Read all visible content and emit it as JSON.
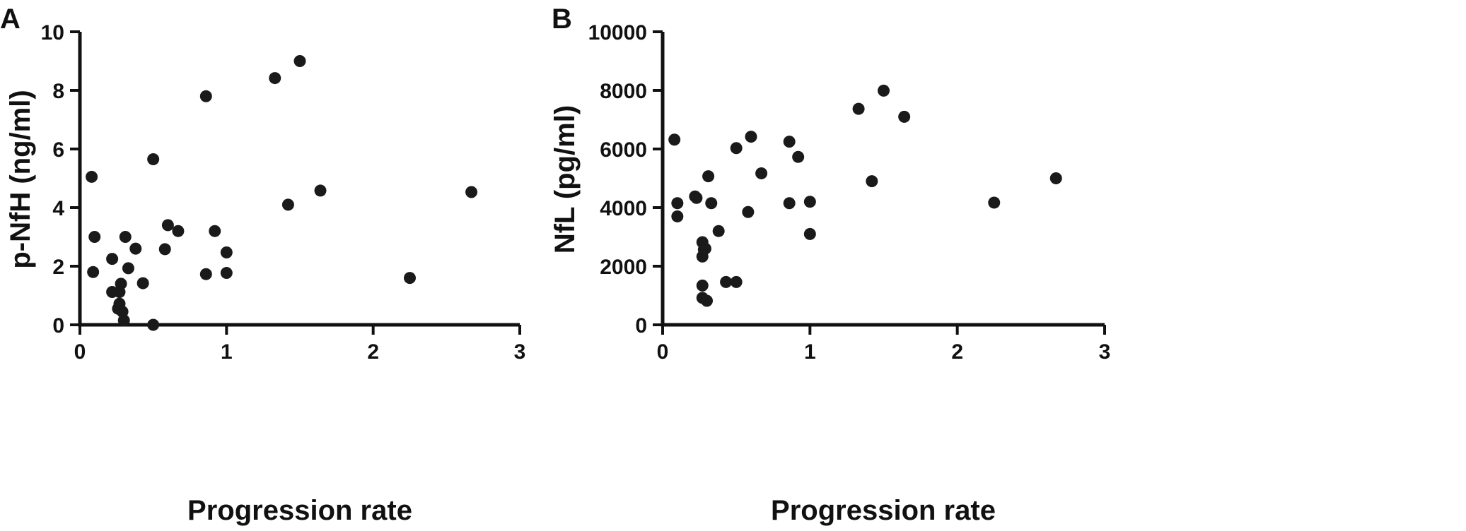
{
  "chart_data": [
    {
      "panel": "A",
      "type": "scatter",
      "xlabel": "Progression rate",
      "ylabel": "p-NfH (ng/ml)",
      "xlim": [
        0,
        3
      ],
      "ylim": [
        0,
        10
      ],
      "xticks": [
        0,
        1,
        2,
        3
      ],
      "yticks": [
        0,
        2,
        4,
        6,
        8,
        10
      ],
      "xtick_labels": [
        "0",
        "1",
        "2",
        "3"
      ],
      "ytick_labels": [
        "0",
        "2",
        "4",
        "6",
        "8",
        "10"
      ],
      "grid": false,
      "color": "#1a1a1a",
      "points": [
        {
          "x": 0.08,
          "y": 5.05
        },
        {
          "x": 0.1,
          "y": 3.0
        },
        {
          "x": 0.09,
          "y": 1.8
        },
        {
          "x": 0.22,
          "y": 2.25
        },
        {
          "x": 0.22,
          "y": 1.12
        },
        {
          "x": 0.27,
          "y": 1.12
        },
        {
          "x": 0.28,
          "y": 1.4
        },
        {
          "x": 0.26,
          "y": 0.55
        },
        {
          "x": 0.27,
          "y": 0.72
        },
        {
          "x": 0.29,
          "y": 0.45
        },
        {
          "x": 0.3,
          "y": 0.15
        },
        {
          "x": 0.31,
          "y": 3.0
        },
        {
          "x": 0.33,
          "y": 1.93
        },
        {
          "x": 0.38,
          "y": 2.6
        },
        {
          "x": 0.43,
          "y": 1.42
        },
        {
          "x": 0.5,
          "y": 5.65
        },
        {
          "x": 0.5,
          "y": 0.0
        },
        {
          "x": 0.58,
          "y": 2.58
        },
        {
          "x": 0.6,
          "y": 3.4
        },
        {
          "x": 0.67,
          "y": 3.2
        },
        {
          "x": 0.86,
          "y": 7.8
        },
        {
          "x": 0.86,
          "y": 1.73
        },
        {
          "x": 0.92,
          "y": 3.2
        },
        {
          "x": 1.0,
          "y": 2.47
        },
        {
          "x": 1.0,
          "y": 1.77
        },
        {
          "x": 1.33,
          "y": 8.42
        },
        {
          "x": 1.42,
          "y": 4.1
        },
        {
          "x": 1.5,
          "y": 9.0
        },
        {
          "x": 1.64,
          "y": 4.58
        },
        {
          "x": 2.25,
          "y": 1.6
        },
        {
          "x": 2.67,
          "y": 4.53
        }
      ]
    },
    {
      "panel": "B",
      "type": "scatter",
      "xlabel": "Progression rate",
      "ylabel": "NfL (pg/ml)",
      "xlim": [
        0,
        3
      ],
      "ylim": [
        0,
        10000
      ],
      "xticks": [
        0,
        1,
        2,
        3
      ],
      "yticks": [
        0,
        2000,
        4000,
        6000,
        8000,
        10000
      ],
      "xtick_labels": [
        "0",
        "1",
        "2",
        "3"
      ],
      "ytick_labels": [
        "0",
        "2000",
        "4000",
        "6000",
        "8000",
        "10000"
      ],
      "grid": false,
      "color": "#1a1a1a",
      "points": [
        {
          "x": 0.08,
          "y": 6320
        },
        {
          "x": 0.1,
          "y": 4150
        },
        {
          "x": 0.1,
          "y": 3700
        },
        {
          "x": 0.22,
          "y": 4380
        },
        {
          "x": 0.23,
          "y": 4330
        },
        {
          "x": 0.27,
          "y": 2820
        },
        {
          "x": 0.28,
          "y": 2570
        },
        {
          "x": 0.27,
          "y": 2330
        },
        {
          "x": 0.29,
          "y": 2600
        },
        {
          "x": 0.27,
          "y": 1340
        },
        {
          "x": 0.27,
          "y": 920
        },
        {
          "x": 0.3,
          "y": 820
        },
        {
          "x": 0.31,
          "y": 5070
        },
        {
          "x": 0.33,
          "y": 4150
        },
        {
          "x": 0.38,
          "y": 3200
        },
        {
          "x": 0.43,
          "y": 1460
        },
        {
          "x": 0.5,
          "y": 6030
        },
        {
          "x": 0.5,
          "y": 1460
        },
        {
          "x": 0.58,
          "y": 3850
        },
        {
          "x": 0.6,
          "y": 6420
        },
        {
          "x": 0.67,
          "y": 5170
        },
        {
          "x": 0.86,
          "y": 6250
        },
        {
          "x": 0.86,
          "y": 4150
        },
        {
          "x": 0.92,
          "y": 5730
        },
        {
          "x": 1.0,
          "y": 4200
        },
        {
          "x": 1.0,
          "y": 3100
        },
        {
          "x": 1.33,
          "y": 7370
        },
        {
          "x": 1.42,
          "y": 4900
        },
        {
          "x": 1.5,
          "y": 7990
        },
        {
          "x": 1.64,
          "y": 7100
        },
        {
          "x": 2.25,
          "y": 4170
        },
        {
          "x": 2.67,
          "y": 5000
        }
      ]
    }
  ]
}
